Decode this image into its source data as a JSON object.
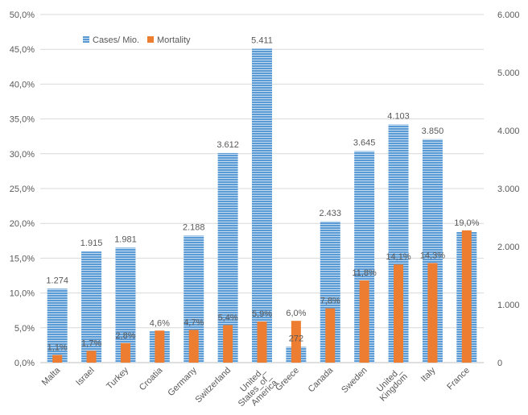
{
  "chart_data": {
    "type": "bar",
    "title": "",
    "categories": [
      "Malta",
      "Israel",
      "Turkey",
      "Croatia",
      "Germany",
      "Switzerland",
      "United_States_of_America",
      "Greece",
      "Canada",
      "Sweden",
      "United_Kingdom",
      "Italy",
      "France"
    ],
    "series": [
      {
        "name": "Cases/ Mio.",
        "axis": "right",
        "color": "#5b9bd5",
        "values": [
          1274,
          1915,
          1981,
          540,
          2188,
          3612,
          5411,
          272,
          2433,
          3645,
          4103,
          3850,
          2250
        ],
        "labels": [
          "1.274",
          "1.915",
          "1.981",
          null,
          "2.188",
          "3.612",
          "5.411",
          "272",
          "2.433",
          "3.645",
          "4.103",
          "3.850",
          null
        ]
      },
      {
        "name": "Mortality",
        "axis": "left",
        "color": "#ed7d31",
        "values": [
          1.1,
          1.7,
          2.8,
          4.6,
          4.7,
          5.4,
          5.9,
          6.0,
          7.8,
          11.8,
          14.1,
          14.3,
          19.0
        ],
        "labels": [
          "1,1%",
          "1,7%",
          "2,8%",
          "4,6%",
          "4,7%",
          "5,4%",
          "5,9%",
          "6,0%",
          "7,8%",
          "11,8%",
          "14,1%",
          "14,3%",
          "19,0%"
        ]
      }
    ],
    "left_axis": {
      "ylim": [
        0,
        50
      ],
      "ticks": [
        "0,0%",
        "5,0%",
        "10,0%",
        "15,0%",
        "20,0%",
        "25,0%",
        "30,0%",
        "35,0%",
        "40,0%",
        "45,0%",
        "50,0%"
      ]
    },
    "right_axis": {
      "ylim": [
        0,
        6000
      ],
      "ticks": [
        "0",
        "1.000",
        "2.000",
        "3.000",
        "4.000",
        "5.000",
        "6.000"
      ]
    },
    "grid": true,
    "legend": "top-left"
  }
}
